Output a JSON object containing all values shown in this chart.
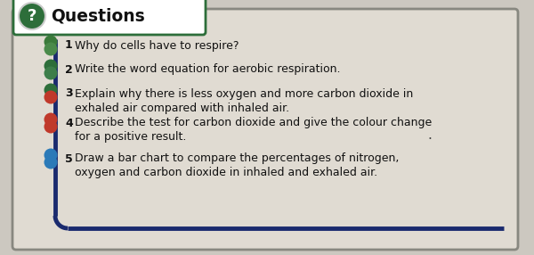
{
  "title": "Questions",
  "title_icon": "?",
  "background_color": "#ccc8c0",
  "box_bg_color": "#e0dbd2",
  "header_bg_color": "#ffffff",
  "header_border_color": "#2d6e3a",
  "title_color": "#111111",
  "sidebar_color": "#1a2a6e",
  "questions": [
    {
      "number": "1",
      "text": "Why do cells have to respire?",
      "dot_colors": [
        "#3a7a3a",
        "#4a8a4a"
      ],
      "continuation": null
    },
    {
      "number": "2",
      "text": "Write the word equation for aerobic respiration.",
      "dot_colors": [
        "#2d6e3a",
        "#3d7e4a"
      ],
      "continuation": null
    },
    {
      "number": "3",
      "text": "Explain why there is less oxygen and more carbon dioxide in",
      "dot_colors": [
        "#2d6e3a",
        "#c0392b"
      ],
      "continuation": "exhaled air compared with inhaled air."
    },
    {
      "number": "4",
      "text": "Describe the test for carbon dioxide and give the colour change",
      "dot_colors": [
        "#c0392b",
        "#c0392b"
      ],
      "continuation": "for a positive result."
    },
    {
      "number": "5",
      "text": "Draw a bar chart to compare the percentages of nitrogen,",
      "dot_colors": [
        "#2b7ab8",
        "#2b7ab8"
      ],
      "continuation": "oxygen and carbon dioxide in inhaled and exhaled air."
    }
  ],
  "figsize": [
    6.0,
    2.86
  ],
  "dpi": 100
}
